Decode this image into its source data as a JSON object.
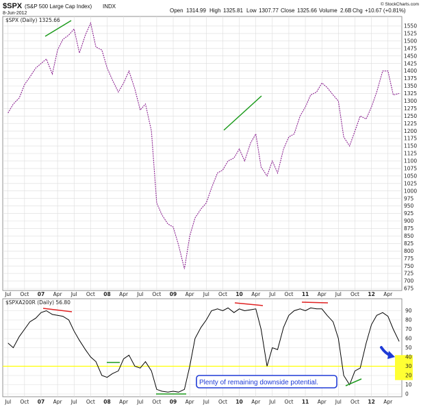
{
  "header": {
    "symbol": "$SPX",
    "name": "(S&P 500 Large Cap Index)",
    "exchange": "INDX",
    "date": "8-Jun-2012",
    "open_label": "Open",
    "open": "1314.99",
    "high_label": "High",
    "high": "1325.81",
    "low_label": "Low",
    "low": "1307.77",
    "close_label": "Close",
    "close": "1325.66",
    "volume_label": "Volume",
    "volume": "2.6B",
    "chg_label": "Chg",
    "chg": "+10.67 (+0.81%)",
    "watermark": "© StockCharts.com"
  },
  "colors": {
    "price_line": "#8a2090",
    "osc_line": "#000000",
    "grid": "#dcdcdc",
    "panel_bg": "#f4f4f4",
    "hline": "#ffff00",
    "highlight_box": "#ffff33",
    "trend_up": "#1a9a1a",
    "trend_down": "#e02020",
    "annotation_border": "#1e3ad6",
    "arrow": "#1e3ad6"
  },
  "annotation": {
    "text": "Plenty of remaining downside potential.",
    "icon": "arrow-down-right-icon"
  },
  "chart_data": [
    {
      "type": "line",
      "title": "$SPX (Daily) 1325.66",
      "legend_text": "$SPX (Daily) 1325.66",
      "ylim": [
        675,
        1575
      ],
      "y_ticks": [
        675,
        700,
        725,
        750,
        775,
        800,
        825,
        850,
        875,
        900,
        925,
        950,
        975,
        1000,
        1025,
        1050,
        1075,
        1100,
        1125,
        1150,
        1175,
        1200,
        1225,
        1250,
        1275,
        1300,
        1325,
        1350,
        1375,
        1400,
        1425,
        1450,
        1475,
        1500,
        1525,
        1550
      ],
      "x_ticks": [
        "Jul",
        "Oct",
        "07",
        "Apr",
        "Jul",
        "Oct",
        "08",
        "Apr",
        "Jul",
        "Oct",
        "09",
        "Apr",
        "Jul",
        "Oct",
        "10",
        "Apr",
        "Jul",
        "Oct",
        "11",
        "Apr",
        "Jul",
        "Oct",
        "12",
        "Apr"
      ],
      "x": [
        2006.5,
        2006.58,
        2006.67,
        2006.75,
        2006.83,
        2006.92,
        2007.0,
        2007.08,
        2007.17,
        2007.25,
        2007.33,
        2007.42,
        2007.5,
        2007.58,
        2007.67,
        2007.75,
        2007.83,
        2007.92,
        2008.0,
        2008.08,
        2008.17,
        2008.25,
        2008.33,
        2008.42,
        2008.5,
        2008.58,
        2008.67,
        2008.75,
        2008.83,
        2008.92,
        2009.0,
        2009.08,
        2009.17,
        2009.25,
        2009.33,
        2009.42,
        2009.5,
        2009.58,
        2009.67,
        2009.75,
        2009.83,
        2009.92,
        2010.0,
        2010.08,
        2010.17,
        2010.25,
        2010.33,
        2010.42,
        2010.5,
        2010.58,
        2010.67,
        2010.75,
        2010.83,
        2010.92,
        2011.0,
        2011.08,
        2011.17,
        2011.25,
        2011.33,
        2011.42,
        2011.5,
        2011.58,
        2011.67,
        2011.75,
        2011.83,
        2011.92,
        2012.0,
        2012.08,
        2012.17,
        2012.25,
        2012.33,
        2012.42
      ],
      "y": [
        1260,
        1290,
        1310,
        1355,
        1380,
        1410,
        1425,
        1440,
        1390,
        1470,
        1505,
        1520,
        1540,
        1460,
        1520,
        1560,
        1480,
        1470,
        1410,
        1370,
        1330,
        1360,
        1400,
        1340,
        1270,
        1290,
        1200,
        960,
        920,
        890,
        880,
        820,
        740,
        850,
        910,
        940,
        960,
        1010,
        1060,
        1070,
        1100,
        1110,
        1140,
        1100,
        1160,
        1190,
        1080,
        1050,
        1100,
        1060,
        1140,
        1180,
        1190,
        1250,
        1280,
        1320,
        1330,
        1360,
        1345,
        1320,
        1300,
        1180,
        1150,
        1200,
        1250,
        1240,
        1280,
        1330,
        1400,
        1400,
        1320,
        1325
      ]
    },
    {
      "type": "line",
      "title": "$SPXA200R (Daily) 56.80",
      "legend_text": "$SPXA200R (Daily) 56.80",
      "ylim": [
        0,
        100
      ],
      "y_ticks": [
        0,
        10,
        20,
        30,
        40,
        50,
        60,
        70,
        80,
        90
      ],
      "x_ticks": [
        "Jul",
        "Oct",
        "07",
        "Apr",
        "Jul",
        "Oct",
        "08",
        "Apr",
        "Jul",
        "Oct",
        "09",
        "Apr",
        "Jul",
        "Oct",
        "10",
        "Apr",
        "Jul",
        "Oct",
        "11",
        "Apr",
        "Jul",
        "Oct",
        "12",
        "Apr"
      ],
      "reference_line": 30,
      "highlight_range": [
        15,
        42
      ],
      "x": [
        2006.5,
        2006.58,
        2006.67,
        2006.75,
        2006.83,
        2006.92,
        2007.0,
        2007.08,
        2007.17,
        2007.25,
        2007.33,
        2007.42,
        2007.5,
        2007.58,
        2007.67,
        2007.75,
        2007.83,
        2007.92,
        2008.0,
        2008.08,
        2008.17,
        2008.25,
        2008.33,
        2008.42,
        2008.5,
        2008.58,
        2008.67,
        2008.75,
        2008.83,
        2008.92,
        2009.0,
        2009.08,
        2009.17,
        2009.25,
        2009.33,
        2009.42,
        2009.5,
        2009.58,
        2009.67,
        2009.75,
        2009.83,
        2009.92,
        2010.0,
        2010.08,
        2010.17,
        2010.25,
        2010.33,
        2010.42,
        2010.5,
        2010.58,
        2010.67,
        2010.75,
        2010.83,
        2010.92,
        2011.0,
        2011.08,
        2011.17,
        2011.25,
        2011.33,
        2011.42,
        2011.5,
        2011.58,
        2011.67,
        2011.75,
        2011.83,
        2011.92,
        2012.0,
        2012.08,
        2012.17,
        2012.25,
        2012.33,
        2012.42
      ],
      "y": [
        55,
        50,
        62,
        70,
        78,
        82,
        88,
        90,
        86,
        85,
        84,
        80,
        68,
        58,
        48,
        40,
        35,
        20,
        18,
        22,
        25,
        38,
        42,
        30,
        28,
        35,
        25,
        5,
        3,
        2,
        3,
        2,
        5,
        30,
        60,
        72,
        80,
        90,
        92,
        90,
        93,
        88,
        92,
        90,
        91,
        92,
        70,
        30,
        50,
        48,
        72,
        85,
        90,
        92,
        90,
        93,
        92,
        92,
        85,
        78,
        60,
        20,
        10,
        25,
        28,
        55,
        75,
        85,
        88,
        84,
        70,
        56.8
      ]
    }
  ]
}
